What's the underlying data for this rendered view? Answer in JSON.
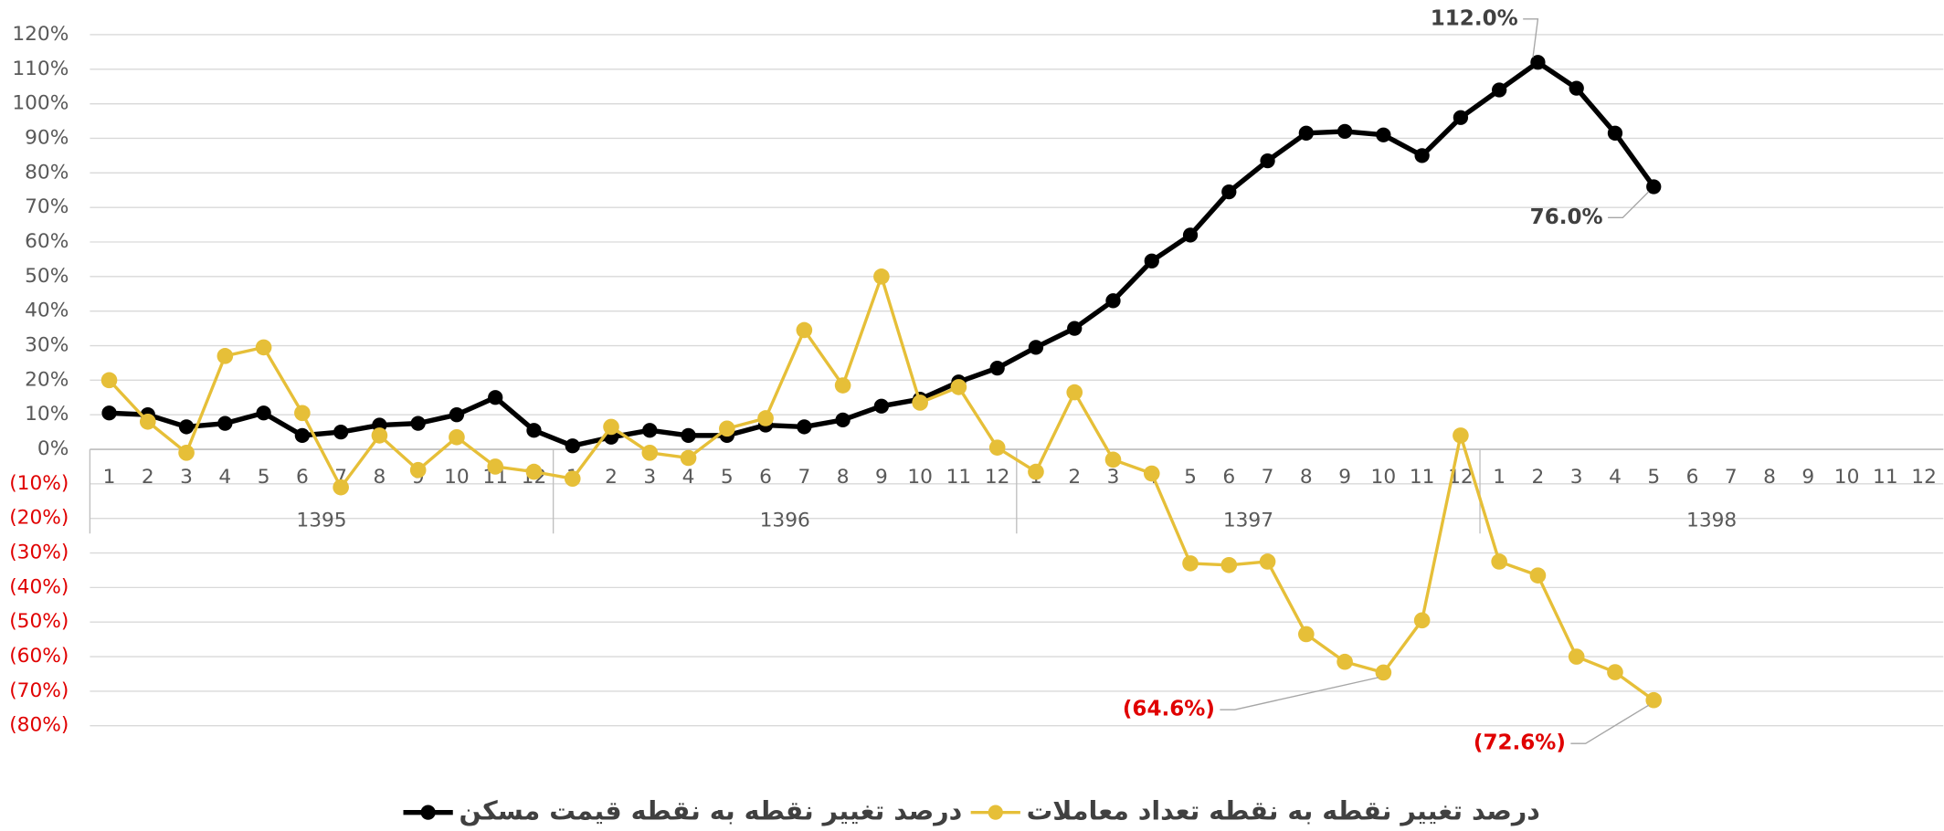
{
  "chart_data": {
    "type": "line",
    "categories": [
      "1",
      "2",
      "3",
      "4",
      "5",
      "6",
      "7",
      "8",
      "9",
      "10",
      "11",
      "12",
      "1",
      "2",
      "3",
      "4",
      "5",
      "6",
      "7",
      "8",
      "9",
      "10",
      "11",
      "12",
      "1",
      "2",
      "3",
      "4",
      "5",
      "6",
      "7",
      "8",
      "9",
      "10",
      "11",
      "12",
      "1",
      "2",
      "3",
      "4",
      "5",
      "6",
      "7",
      "8",
      "9",
      "10",
      "11",
      "12"
    ],
    "category_groups": [
      "1395",
      "1396",
      "1397",
      "1398"
    ],
    "series": [
      {
        "name": "درصد تغییر نقطه به نقطه قیمت مسکن",
        "color": "#000000",
        "label_color": "#404040",
        "values": [
          10.5,
          10,
          6.5,
          7.5,
          10.5,
          4,
          5,
          7,
          7.5,
          10,
          15,
          5.5,
          1,
          3.5,
          5.5,
          4,
          4,
          7,
          6.5,
          8.5,
          12.5,
          14.5,
          19.5,
          23.5,
          29.5,
          35,
          43,
          54.5,
          62,
          74.5,
          83.5,
          91.5,
          92,
          91,
          85,
          96,
          104,
          112,
          104.5,
          91.5,
          76,
          null,
          null,
          null,
          null,
          null,
          null,
          null
        ],
        "value_labels": [
          null,
          null,
          null,
          null,
          null,
          null,
          null,
          null,
          null,
          null,
          null,
          null,
          null,
          null,
          null,
          null,
          null,
          null,
          null,
          null,
          null,
          null,
          null,
          null,
          null,
          null,
          null,
          null,
          null,
          null,
          null,
          null,
          null,
          null,
          null,
          null,
          null,
          "112.0%",
          null,
          null,
          "76.0%",
          null,
          null,
          null,
          null,
          null,
          null,
          null
        ]
      },
      {
        "name": "درصد تغییر نقطه به نقطه تعداد معاملات",
        "color": "#e6bf38",
        "label_color": "#e00000",
        "values": [
          20,
          8,
          -1,
          27,
          29.5,
          10.5,
          -11,
          4,
          -6,
          3.5,
          -5,
          -6.5,
          -8.5,
          6.5,
          -1,
          -2.5,
          6,
          9,
          34.5,
          18.5,
          50,
          13.5,
          18,
          0.5,
          -6.5,
          16.5,
          -3,
          -7,
          -33,
          -33.5,
          -32.5,
          -53.5,
          -61.5,
          -64.6,
          -49.5,
          4,
          -32.5,
          -36.5,
          -60,
          -64.5,
          -72.6,
          null,
          null,
          null,
          null,
          null,
          null,
          null
        ],
        "value_labels": [
          null,
          null,
          null,
          null,
          null,
          null,
          null,
          null,
          null,
          null,
          null,
          null,
          null,
          null,
          null,
          null,
          null,
          null,
          null,
          null,
          null,
          null,
          null,
          null,
          null,
          null,
          null,
          null,
          null,
          null,
          null,
          null,
          null,
          "(64.6%)",
          null,
          null,
          null,
          null,
          null,
          null,
          "(72.6%)",
          null,
          null,
          null,
          null,
          null,
          null,
          null
        ]
      }
    ],
    "ylim": [
      -80,
      120
    ],
    "yticks": [
      {
        "value": 120,
        "label": "120%"
      },
      {
        "value": 110,
        "label": "110%"
      },
      {
        "value": 100,
        "label": "100%"
      },
      {
        "value": 90,
        "label": "90%"
      },
      {
        "value": 80,
        "label": "80%"
      },
      {
        "value": 70,
        "label": "70%"
      },
      {
        "value": 60,
        "label": "60%"
      },
      {
        "value": 50,
        "label": "50%"
      },
      {
        "value": 40,
        "label": "40%"
      },
      {
        "value": 30,
        "label": "30%"
      },
      {
        "value": 20,
        "label": "20%"
      },
      {
        "value": 10,
        "label": "10%"
      },
      {
        "value": 0,
        "label": "0%"
      },
      {
        "value": -10,
        "label": "(10%)"
      },
      {
        "value": -20,
        "label": "(20%)"
      },
      {
        "value": -30,
        "label": "(30%)"
      },
      {
        "value": -40,
        "label": "(40%)"
      },
      {
        "value": -50,
        "label": "(50%)"
      },
      {
        "value": -60,
        "label": "(60%)"
      },
      {
        "value": -70,
        "label": "(70%)"
      },
      {
        "value": -80,
        "label": "(80%)"
      }
    ],
    "negative_tick_color": "#e00000",
    "grid": true,
    "legend": "bottom"
  }
}
